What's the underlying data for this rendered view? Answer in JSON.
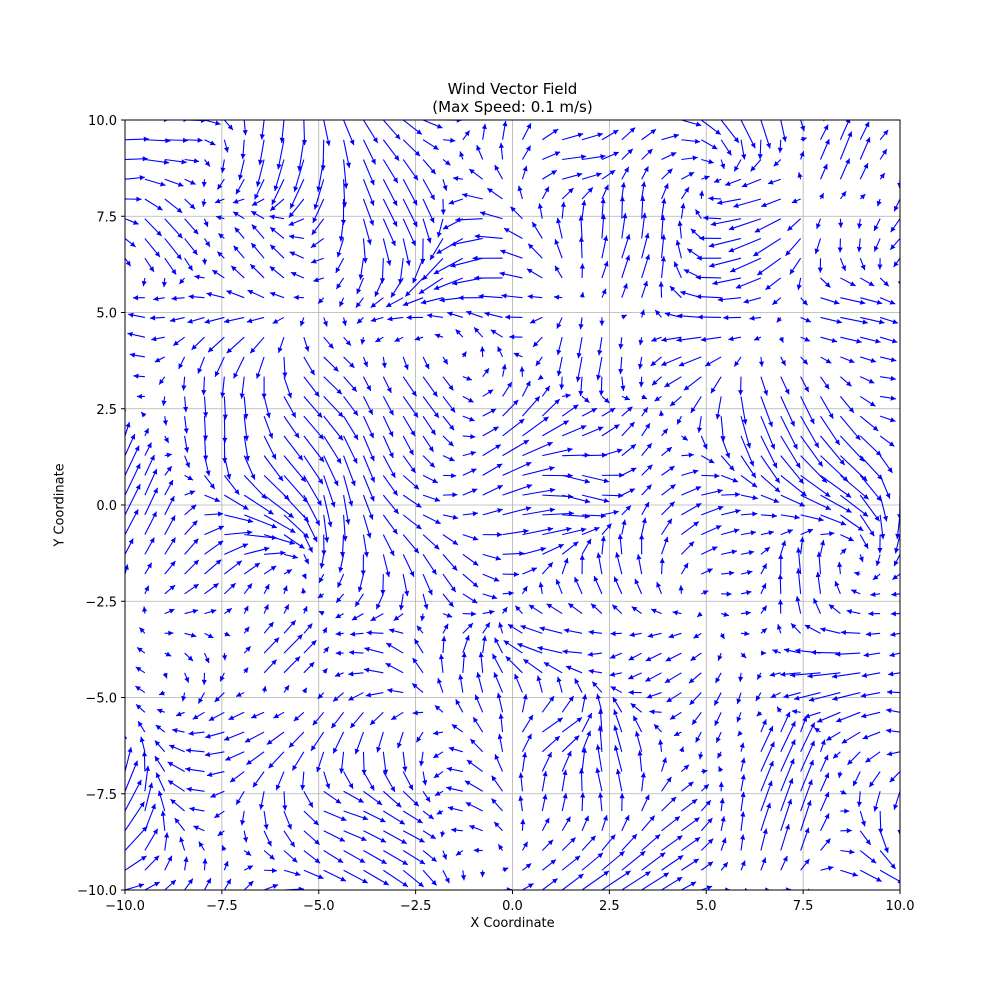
{
  "chart_data": {
    "type": "quiver",
    "title": "Wind Vector Field",
    "subtitle": "(Max Speed: 0.1 m/s)",
    "xlabel": "X Coordinate",
    "ylabel": "Y Coordinate",
    "xlim": [
      -10,
      10
    ],
    "ylim": [
      -10,
      10
    ],
    "xticks": [
      -10,
      -7.5,
      -5,
      -2.5,
      0,
      2.5,
      5,
      7.5,
      10
    ],
    "yticks": [
      -10,
      -7.5,
      -5,
      -2.5,
      0,
      2.5,
      5,
      7.5,
      10
    ],
    "xtick_labels": [
      "−10.0",
      "−7.5",
      "−5.0",
      "−2.5",
      "0.0",
      "2.5",
      "5.0",
      "7.5",
      "10.0"
    ],
    "ytick_labels": [
      "−10.0",
      "−7.5",
      "−5.0",
      "−2.5",
      "0.0",
      "2.5",
      "5.0",
      "7.5",
      "10.0"
    ],
    "grid": true,
    "arrow_color": "#0000ff",
    "grid_resolution": 40,
    "sample_points": [
      {
        "x": -9.5,
        "y": 9.5,
        "u": 0.9,
        "v": 0.0
      },
      {
        "x": -9.0,
        "y": 7.0,
        "u": 0.6,
        "v": -0.8
      },
      {
        "x": -6.5,
        "y": 6.5,
        "u": -0.5,
        "v": 0.6
      },
      {
        "x": -3.0,
        "y": 8.0,
        "u": 0.5,
        "v": -1.0
      },
      {
        "x": 1.5,
        "y": 9.0,
        "u": 0.9,
        "v": 0.1
      },
      {
        "x": 3.0,
        "y": 6.0,
        "u": 0.3,
        "v": 1.0
      },
      {
        "x": 8.5,
        "y": 9.0,
        "u": 0.4,
        "v": 1.0
      },
      {
        "x": 8.5,
        "y": 5.0,
        "u": 1.0,
        "v": -0.2
      },
      {
        "x": 2.0,
        "y": 4.0,
        "u": -0.2,
        "v": -1.0
      },
      {
        "x": -2.5,
        "y": 3.0,
        "u": 0.6,
        "v": -0.8
      },
      {
        "x": -7.5,
        "y": 2.0,
        "u": 0.0,
        "v": -1.0
      },
      {
        "x": 1.5,
        "y": 0.5,
        "u": 1.0,
        "v": -0.3
      },
      {
        "x": 7.5,
        "y": -2.0,
        "u": -0.1,
        "v": 1.0
      },
      {
        "x": -6.0,
        "y": -4.0,
        "u": 0.7,
        "v": 0.7
      },
      {
        "x": 1.0,
        "y": -6.0,
        "u": 0.8,
        "v": 0.5
      },
      {
        "x": 7.0,
        "y": -6.5,
        "u": 0.5,
        "v": 1.0
      },
      {
        "x": -4.5,
        "y": -8.0,
        "u": 0.9,
        "v": -0.3
      },
      {
        "x": 7.0,
        "y": -8.5,
        "u": 0.3,
        "v": 1.0
      }
    ]
  }
}
